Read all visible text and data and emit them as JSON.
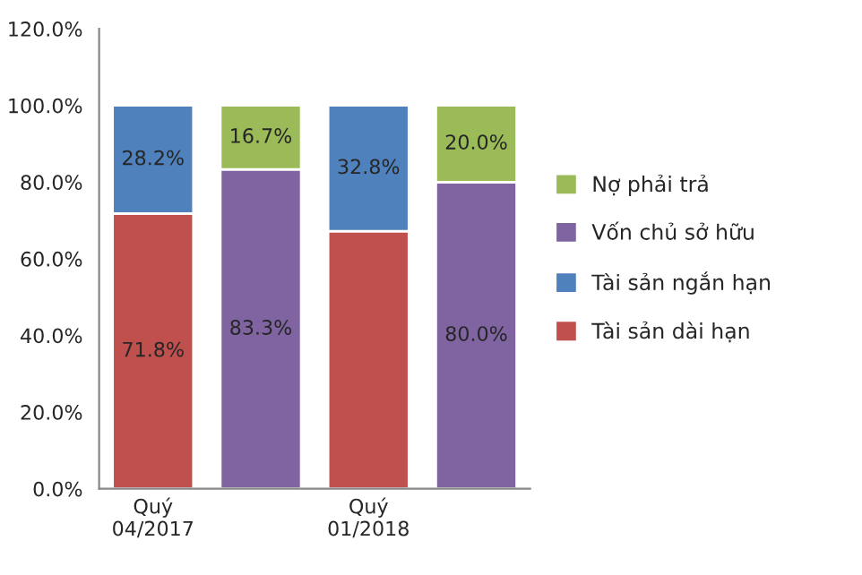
{
  "chart_data": {
    "type": "bar",
    "stacked": true,
    "categories": [
      "Quý\n04/2017",
      null,
      "Quý\n01/2018",
      null
    ],
    "series": [
      {
        "name": "Tài sản dài hạn",
        "color": "#c0504d",
        "values": [
          71.8,
          null,
          67.2,
          null
        ],
        "value_labels": [
          "71.8%",
          null,
          null,
          null
        ]
      },
      {
        "name": "Tài sản ngắn hạn",
        "color": "#4f81bd",
        "values": [
          28.2,
          null,
          32.8,
          null
        ],
        "value_labels": [
          "28.2%",
          null,
          "32.8%",
          null
        ]
      },
      {
        "name": "Vốn chủ sở hữu",
        "color": "#8064a2",
        "values": [
          null,
          83.3,
          null,
          80.0
        ],
        "value_labels": [
          null,
          "83.3%",
          null,
          "80.0%"
        ]
      },
      {
        "name": "Nợ phải trả",
        "color": "#9bbb59",
        "values": [
          null,
          16.7,
          null,
          20.0
        ],
        "value_labels": [
          null,
          "16.7%",
          null,
          "20.0%"
        ]
      }
    ],
    "ylim": [
      0,
      120
    ],
    "yticks": [
      {
        "value": 0,
        "label": "0.0%"
      },
      {
        "value": 20,
        "label": "20.0%"
      },
      {
        "value": 40,
        "label": "40.0%"
      },
      {
        "value": 60,
        "label": "60.0%"
      },
      {
        "value": 80,
        "label": "80.0%"
      },
      {
        "value": 100,
        "label": "100.0%"
      },
      {
        "value": 120,
        "label": "120.0%"
      }
    ],
    "grid": false,
    "legend": "right"
  }
}
